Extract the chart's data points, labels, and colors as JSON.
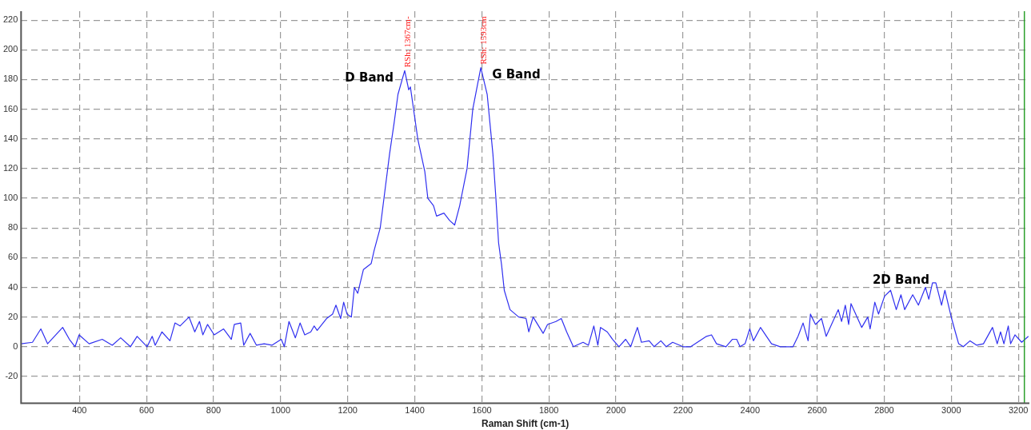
{
  "chart_data": {
    "type": "line",
    "xlabel": "Raman Shift (cm-1)",
    "xlim": [
      226,
      3233
    ],
    "xticks": [
      400,
      600,
      800,
      1000,
      1200,
      1400,
      1600,
      1800,
      2000,
      2200,
      2400,
      2600,
      2800,
      3000,
      3200
    ],
    "ylim": [
      -38,
      226
    ],
    "yticks": [
      -20,
      0,
      20,
      40,
      60,
      80,
      100,
      120,
      140,
      160,
      180,
      200,
      220
    ],
    "grid": true,
    "legend": false,
    "marker": "none",
    "line_style": "solid",
    "series": [
      {
        "color": "#3030f0",
        "x": [
          226,
          260,
          285,
          305,
          350,
          370,
          387,
          399,
          429,
          468,
          498,
          523,
          552,
          572,
          602,
          617,
          626,
          646,
          670,
          685,
          700,
          727,
          744,
          758,
          768,
          782,
          802,
          830,
          853,
          862,
          881,
          890,
          909,
          928,
          951,
          974,
          1002,
          1011,
          1025,
          1044,
          1058,
          1072,
          1090,
          1100,
          1109,
          1137,
          1155,
          1165,
          1179,
          1188,
          1198,
          1211,
          1220,
          1230,
          1247,
          1270,
          1279,
          1297,
          1311,
          1325,
          1338,
          1350,
          1370,
          1382,
          1387,
          1409,
          1430,
          1439,
          1456,
          1465,
          1487,
          1504,
          1519,
          1534,
          1556,
          1573,
          1597,
          1616,
          1633,
          1642,
          1650,
          1659,
          1667,
          1684,
          1710,
          1732,
          1740,
          1753,
          1783,
          1796,
          1821,
          1837,
          1853,
          1873,
          1902,
          1918,
          1934,
          1946,
          1954,
          1974,
          1990,
          2009,
          2029,
          2044,
          2064,
          2076,
          2099,
          2114,
          2134,
          2150,
          2169,
          2200,
          2223,
          2270,
          2285,
          2300,
          2328,
          2347,
          2360,
          2370,
          2385,
          2399,
          2410,
          2431,
          2449,
          2464,
          2490,
          2528,
          2543,
          2558,
          2573,
          2580,
          2595,
          2613,
          2627,
          2645,
          2663,
          2673,
          2684,
          2694,
          2701,
          2719,
          2733,
          2751,
          2758,
          2772,
          2783,
          2801,
          2819,
          2836,
          2850,
          2861,
          2885,
          2902,
          2923,
          2933,
          2944,
          2954,
          2971,
          2981,
          3001,
          3012,
          3022,
          3036,
          3056,
          3076,
          3096,
          3123,
          3137,
          3147,
          3157,
          3170,
          3177,
          3190,
          3210,
          3230
        ],
        "values": [
          2,
          3,
          12,
          2,
          13,
          5,
          0,
          8,
          2,
          5,
          1,
          6,
          0,
          7,
          0,
          7,
          1,
          10,
          4,
          16,
          14,
          20,
          10,
          17,
          8,
          15,
          8,
          12,
          5,
          15,
          16,
          1,
          9,
          1,
          2,
          1,
          5,
          0,
          17,
          6,
          16,
          8,
          10,
          14,
          11,
          19,
          22,
          28,
          19,
          30,
          22,
          20,
          40,
          36,
          52,
          56,
          65,
          80,
          105,
          130,
          150,
          170,
          186,
          173,
          175,
          140,
          118,
          100,
          95,
          88,
          90,
          85,
          82,
          95,
          120,
          160,
          188,
          170,
          130,
          100,
          70,
          55,
          38,
          25,
          20,
          19,
          10,
          20,
          9,
          15,
          17,
          19,
          10,
          0,
          3,
          1,
          14,
          1,
          13,
          10,
          5,
          0,
          5,
          0,
          13,
          3,
          4,
          0,
          4,
          0,
          3,
          0,
          0,
          7,
          8,
          2,
          0,
          5,
          5,
          0,
          2,
          12,
          4,
          13,
          7,
          2,
          0,
          0,
          7,
          16,
          4,
          22,
          15,
          19,
          7,
          16,
          25,
          17,
          28,
          15,
          29,
          20,
          13,
          20,
          12,
          30,
          22,
          34,
          38,
          25,
          35,
          25,
          35,
          28,
          40,
          32,
          43,
          43,
          28,
          38,
          19,
          10,
          2,
          0,
          4,
          1,
          2,
          13,
          2,
          10,
          2,
          14,
          2,
          8,
          3,
          7
        ]
      }
    ],
    "ref_lines": [
      {
        "axis": "x",
        "value": 3218,
        "color": "#2ca02c"
      }
    ],
    "annotations": [
      {
        "text": "D Band",
        "x": 1370,
        "y": 186
      },
      {
        "text": "G Band",
        "x": 1597,
        "y": 188
      },
      {
        "text": "2D Band",
        "x": 2850,
        "y": 35
      },
      {
        "text": "RSh: 1367cm-",
        "x": 1370,
        "y": 186
      },
      {
        "text": "RSh: 1593cm",
        "x": 1597,
        "y": 188
      }
    ]
  }
}
